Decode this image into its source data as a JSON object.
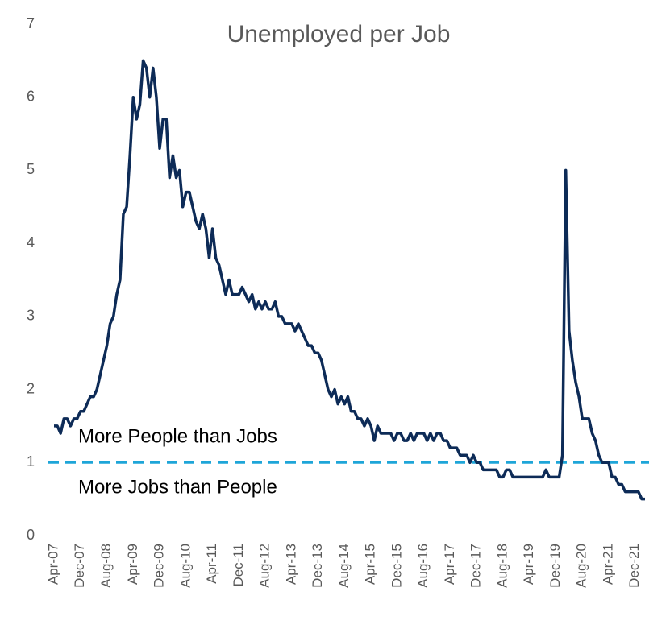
{
  "chart_data": {
    "type": "line",
    "title": "Unemployed per Job",
    "categories": [
      "Apr-07",
      null,
      null,
      null,
      null,
      null,
      null,
      null,
      "Dec-07",
      null,
      null,
      null,
      null,
      null,
      null,
      null,
      "Aug-08",
      null,
      null,
      null,
      null,
      null,
      null,
      null,
      "Apr-09",
      null,
      null,
      null,
      null,
      null,
      null,
      null,
      "Dec-09",
      null,
      null,
      null,
      null,
      null,
      null,
      null,
      "Aug-10",
      null,
      null,
      null,
      null,
      null,
      null,
      null,
      "Apr-11",
      null,
      null,
      null,
      null,
      null,
      null,
      null,
      "Dec-11",
      null,
      null,
      null,
      null,
      null,
      null,
      null,
      "Aug-12",
      null,
      null,
      null,
      null,
      null,
      null,
      null,
      "Apr-13",
      null,
      null,
      null,
      null,
      null,
      null,
      null,
      "Dec-13",
      null,
      null,
      null,
      null,
      null,
      null,
      null,
      "Aug-14",
      null,
      null,
      null,
      null,
      null,
      null,
      null,
      "Apr-15",
      null,
      null,
      null,
      null,
      null,
      null,
      null,
      "Dec-15",
      null,
      null,
      null,
      null,
      null,
      null,
      null,
      "Aug-16",
      null,
      null,
      null,
      null,
      null,
      null,
      null,
      "Apr-17",
      null,
      null,
      null,
      null,
      null,
      null,
      null,
      "Dec-17",
      null,
      null,
      null,
      null,
      null,
      null,
      null,
      "Aug-18",
      null,
      null,
      null,
      null,
      null,
      null,
      null,
      "Apr-19",
      null,
      null,
      null,
      null,
      null,
      null,
      null,
      "Dec-19",
      null,
      null,
      null,
      null,
      null,
      null,
      null,
      "Aug-20",
      null,
      null,
      null,
      null,
      null,
      null,
      null,
      "Apr-21",
      null,
      null,
      null,
      null,
      null,
      null,
      null,
      "Dec-21",
      null,
      null,
      null
    ],
    "values": [
      1.5,
      1.5,
      1.4,
      1.6,
      1.6,
      1.5,
      1.6,
      1.6,
      1.7,
      1.7,
      1.8,
      1.9,
      1.9,
      2.0,
      2.2,
      2.4,
      2.6,
      2.9,
      3.0,
      3.3,
      3.5,
      4.4,
      4.5,
      5.2,
      6.0,
      5.7,
      5.9,
      6.5,
      6.4,
      6.0,
      6.4,
      6.0,
      5.3,
      5.7,
      5.7,
      4.9,
      5.2,
      4.9,
      5.0,
      4.5,
      4.7,
      4.7,
      4.5,
      4.3,
      4.2,
      4.4,
      4.2,
      3.8,
      4.2,
      3.8,
      3.7,
      3.5,
      3.3,
      3.5,
      3.3,
      3.3,
      3.3,
      3.4,
      3.3,
      3.2,
      3.3,
      3.1,
      3.2,
      3.1,
      3.2,
      3.1,
      3.1,
      3.2,
      3.0,
      3.0,
      2.9,
      2.9,
      2.9,
      2.8,
      2.9,
      2.8,
      2.7,
      2.6,
      2.6,
      2.5,
      2.5,
      2.4,
      2.2,
      2.0,
      1.9,
      2.0,
      1.8,
      1.9,
      1.8,
      1.9,
      1.7,
      1.7,
      1.6,
      1.6,
      1.5,
      1.6,
      1.5,
      1.3,
      1.5,
      1.4,
      1.4,
      1.4,
      1.4,
      1.3,
      1.4,
      1.4,
      1.3,
      1.3,
      1.4,
      1.3,
      1.4,
      1.4,
      1.4,
      1.3,
      1.4,
      1.3,
      1.4,
      1.4,
      1.3,
      1.3,
      1.2,
      1.2,
      1.2,
      1.1,
      1.1,
      1.1,
      1.0,
      1.1,
      1.0,
      1.0,
      0.9,
      0.9,
      0.9,
      0.9,
      0.9,
      0.8,
      0.8,
      0.9,
      0.9,
      0.8,
      0.8,
      0.8,
      0.8,
      0.8,
      0.8,
      0.8,
      0.8,
      0.8,
      0.8,
      0.9,
      0.8,
      0.8,
      0.8,
      0.8,
      1.1,
      5.0,
      2.8,
      2.4,
      2.1,
      1.9,
      1.6,
      1.6,
      1.6,
      1.4,
      1.3,
      1.1,
      1.0,
      1.0,
      1.0,
      0.8,
      0.8,
      0.7,
      0.7,
      0.6,
      0.6,
      0.6,
      0.6,
      0.6,
      0.5,
      0.5
    ],
    "color": "#0d2b57",
    "ylim": [
      0,
      7
    ],
    "yticks": [
      0,
      1,
      2,
      3,
      4,
      5,
      6,
      7
    ],
    "grid": false,
    "reference_line": {
      "value": 1,
      "color": "#1ea5d8"
    },
    "annotations": [
      "More People than Jobs",
      "More Jobs than People"
    ]
  }
}
